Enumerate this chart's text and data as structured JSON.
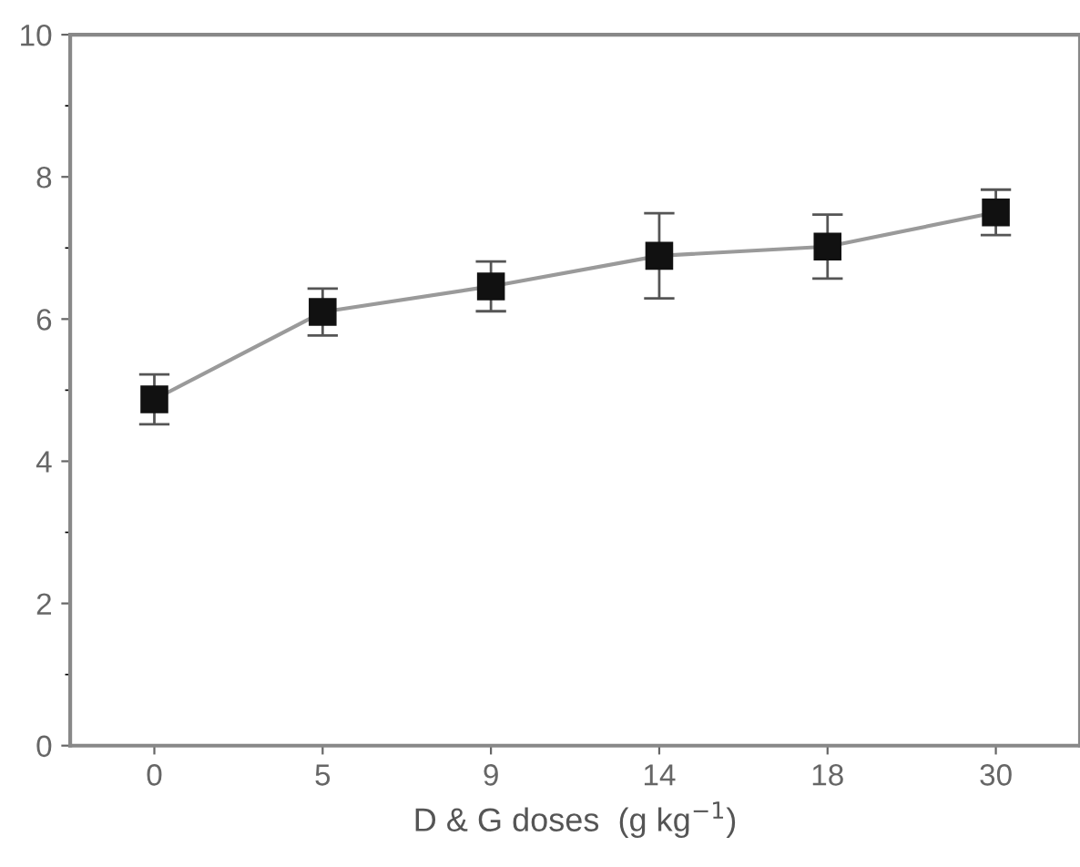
{
  "chart_data": {
    "type": "line",
    "xlabel": "D & G doses  (g kg$^{−1}$)",
    "categories": [
      "0",
      "5",
      "9",
      "14",
      "18",
      "30"
    ],
    "series": [
      {
        "color": "#111111",
        "values": [
          4.87,
          6.1,
          6.46,
          6.89,
          7.02,
          7.5
        ],
        "errors": [
          0.35,
          0.33,
          0.35,
          0.6,
          0.45,
          0.32
        ]
      }
    ],
    "ylim": [
      0,
      10
    ],
    "yticks": [
      0,
      2,
      4,
      6,
      8,
      10
    ],
    "marker": "square",
    "line_style": "solid",
    "grid": false,
    "legend": false
  }
}
